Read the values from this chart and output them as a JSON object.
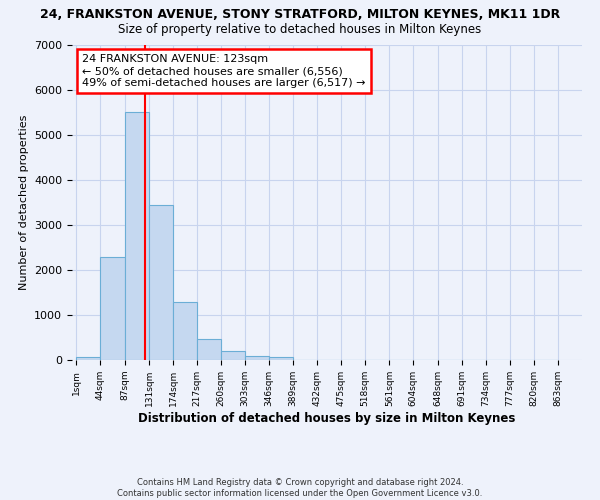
{
  "title1": "24, FRANKSTON AVENUE, STONY STRATFORD, MILTON KEYNES, MK11 1DR",
  "title2": "Size of property relative to detached houses in Milton Keynes",
  "xlabel": "Distribution of detached houses by size in Milton Keynes",
  "ylabel": "Number of detached properties",
  "bin_edges": [
    1,
    44,
    87,
    131,
    174,
    217,
    260,
    303,
    346,
    389,
    432,
    475,
    518,
    561,
    604,
    648,
    691,
    734,
    777,
    820,
    863
  ],
  "bar_heights": [
    70,
    2300,
    5500,
    3450,
    1300,
    470,
    200,
    90,
    60,
    0,
    0,
    0,
    0,
    0,
    0,
    0,
    0,
    0,
    0,
    0
  ],
  "bar_color": "#c5d8f0",
  "bar_edge_color": "#6baed6",
  "property_size": 123,
  "annotation_line1": "24 FRANKSTON AVENUE: 123sqm",
  "annotation_line2": "← 50% of detached houses are smaller (6,556)",
  "annotation_line3": "49% of semi-detached houses are larger (6,517) →",
  "annotation_box_color": "white",
  "annotation_border_color": "red",
  "vline_color": "red",
  "ylim": [
    0,
    7000
  ],
  "yticks": [
    0,
    1000,
    2000,
    3000,
    4000,
    5000,
    6000,
    7000
  ],
  "footer_line1": "Contains HM Land Registry data © Crown copyright and database right 2024.",
  "footer_line2": "Contains public sector information licensed under the Open Government Licence v3.0.",
  "background_color": "#eef2fb",
  "grid_color": "#c8d4ee"
}
